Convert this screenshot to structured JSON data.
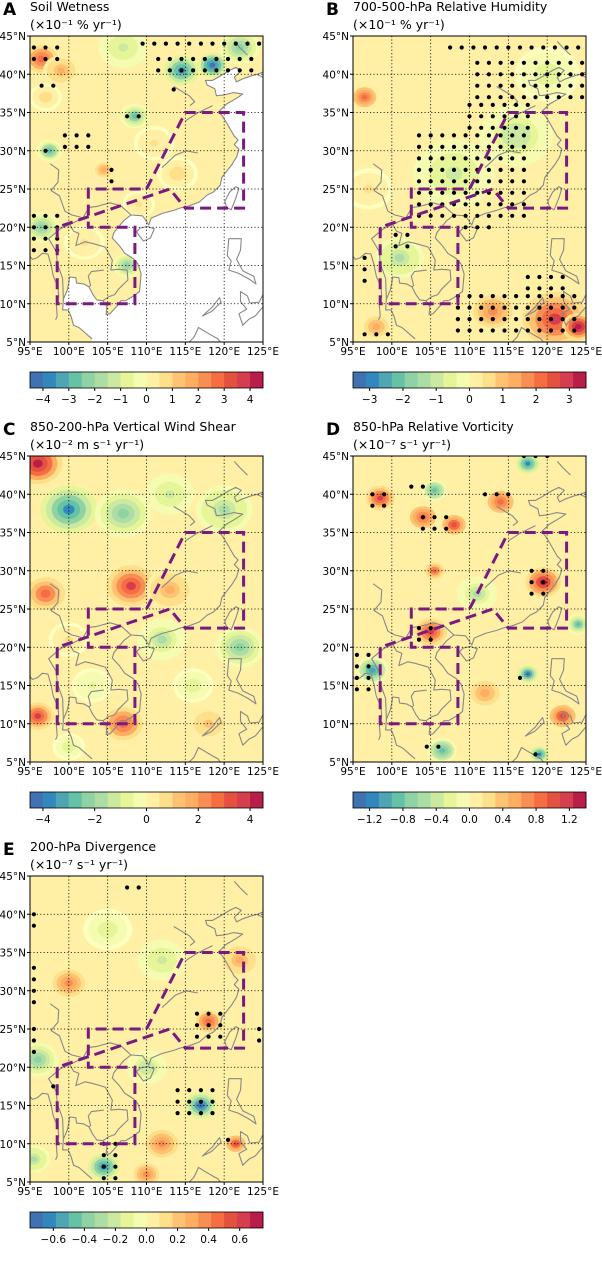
{
  "chart_data": [
    {
      "letter": "A",
      "title": "Soil Wetness",
      "units": "(×10⁻¹ % yr⁻¹)",
      "type": "heatmap",
      "lon_range": [
        95,
        125
      ],
      "lat_range": [
        5,
        45
      ],
      "lon_ticks": [
        "95°E",
        "100°E",
        "105°E",
        "110°E",
        "115°E",
        "120°E",
        "125°E"
      ],
      "lat_ticks": [
        "5°N",
        "10°N",
        "15°N",
        "20°N",
        "25°N",
        "30°N",
        "35°N",
        "40°N",
        "45°N"
      ],
      "colorbar_range": [
        -4.5,
        4.5
      ],
      "colorbar_ticks": [
        "−4",
        "−3",
        "−2",
        "−1",
        "0",
        "1",
        "2",
        "3",
        "4"
      ],
      "colorbar_tick_values": [
        -4,
        -3,
        -2,
        -1,
        0,
        1,
        2,
        3,
        4
      ],
      "masked_ocean": true,
      "blobs": [
        {
          "lon": 96.5,
          "lat": 42,
          "v": 2.8,
          "r": 2.5
        },
        {
          "lon": 99,
          "lat": 40.5,
          "v": 1.8,
          "r": 2.2
        },
        {
          "lon": 97,
          "lat": 37,
          "v": 0.9,
          "r": 2
        },
        {
          "lon": 114.5,
          "lat": 40.5,
          "v": -3.4,
          "r": 2.2
        },
        {
          "lon": 118.5,
          "lat": 41.2,
          "v": -4.2,
          "r": 1.8
        },
        {
          "lon": 122,
          "lat": 43.5,
          "v": -2.2,
          "r": 2.5
        },
        {
          "lon": 107,
          "lat": 43.5,
          "v": -1.3,
          "r": 3
        },
        {
          "lon": 108.5,
          "lat": 34.5,
          "v": -2.6,
          "r": 1.8
        },
        {
          "lon": 97.5,
          "lat": 30,
          "v": -2.8,
          "r": 1.6
        },
        {
          "lon": 104.5,
          "lat": 27.5,
          "v": 1.6,
          "r": 1.8
        },
        {
          "lon": 111,
          "lat": 31,
          "v": 0.8,
          "r": 2.5
        },
        {
          "lon": 96.5,
          "lat": 20,
          "v": -2.4,
          "r": 2.2
        },
        {
          "lon": 107.5,
          "lat": 15,
          "v": -2.1,
          "r": 1.8
        },
        {
          "lon": 102,
          "lat": 18,
          "v": 0.7,
          "r": 2.5
        },
        {
          "lon": 114,
          "lat": 27,
          "v": 1.1,
          "r": 2.5
        },
        {
          "lon": 109,
          "lat": 23,
          "v": 0.8,
          "r": 2
        }
      ],
      "stipple": [
        [
          95.5,
          43.5,
          98.5,
          41.5
        ],
        [
          96.5,
          38.5,
          98.5,
          38.5
        ],
        [
          109.5,
          44,
          124.5,
          44
        ],
        [
          111.5,
          42,
          124.5,
          40
        ],
        [
          113.5,
          38,
          114.5,
          38
        ],
        [
          107.5,
          34.5,
          109.5,
          34.5
        ],
        [
          99.5,
          32,
          103.5,
          30.5
        ],
        [
          97,
          30,
          98,
          30
        ],
        [
          105.5,
          27.5,
          106.5,
          25.5
        ],
        [
          95.5,
          21.5,
          98.5,
          16.5
        ]
      ],
      "box": true
    },
    {
      "letter": "B",
      "title": "700-500-hPa Relative Humidity",
      "units": "(×10⁻¹ % yr⁻¹)",
      "type": "heatmap",
      "lon_range": [
        95,
        125
      ],
      "lat_range": [
        5,
        45
      ],
      "lon_ticks": [
        "95°E",
        "100°E",
        "105°E",
        "110°E",
        "115°E",
        "120°E",
        "125°E"
      ],
      "lat_ticks": [
        "5°N",
        "10°N",
        "15°N",
        "20°N",
        "25°N",
        "30°N",
        "35°N",
        "40°N",
        "45°N"
      ],
      "colorbar_range": [
        -3.5,
        3.5
      ],
      "colorbar_ticks": [
        "−3",
        "−2",
        "−1",
        "0",
        "1",
        "2",
        "3"
      ],
      "colorbar_tick_values": [
        -3,
        -2,
        -1,
        0,
        1,
        2,
        3
      ],
      "masked_ocean": false,
      "blobs": [
        {
          "lon": 96.5,
          "lat": 37,
          "v": 2.2,
          "r": 1.8
        },
        {
          "lon": 108,
          "lat": 27,
          "v": -0.9,
          "r": 5
        },
        {
          "lon": 116,
          "lat": 32,
          "v": -1.2,
          "r": 4.5
        },
        {
          "lon": 120,
          "lat": 40,
          "v": -0.8,
          "r": 4
        },
        {
          "lon": 101,
          "lat": 16,
          "v": -1.4,
          "r": 3
        },
        {
          "lon": 121,
          "lat": 8,
          "v": 2.8,
          "r": 4
        },
        {
          "lon": 124,
          "lat": 7,
          "v": 3.3,
          "r": 2
        },
        {
          "lon": 113,
          "lat": 9,
          "v": 1.6,
          "r": 3
        },
        {
          "lon": 98,
          "lat": 7,
          "v": 1.3,
          "r": 2.5
        },
        {
          "lon": 97,
          "lat": 25,
          "v": 0.6,
          "r": 3
        }
      ],
      "stipple": [
        [
          107.5,
          43.5,
          124.5,
          43.5
        ],
        [
          111,
          41.5,
          124.5,
          37
        ],
        [
          110,
          36,
          117.5,
          33
        ],
        [
          103.5,
          32,
          117.5,
          21
        ],
        [
          109.5,
          20,
          113,
          19.5
        ],
        [
          100.5,
          19,
          102.5,
          17
        ],
        [
          117.5,
          13.5,
          122.5,
          12
        ],
        [
          108.5,
          11,
          124.5,
          6.5
        ],
        [
          96.5,
          16,
          96.5,
          12
        ],
        [
          96.5,
          6,
          99.5,
          6
        ]
      ],
      "box": true
    },
    {
      "letter": "C",
      "title": "850-200-hPa Vertical Wind Shear",
      "units": "(×10⁻² m s⁻¹ yr⁻¹)",
      "type": "heatmap",
      "lon_range": [
        95,
        125
      ],
      "lat_range": [
        5,
        45
      ],
      "lon_ticks": [
        "95°E",
        "100°E",
        "105°E",
        "110°E",
        "115°E",
        "120°E",
        "125°E"
      ],
      "lat_ticks": [
        "5°N",
        "10°N",
        "15°N",
        "20°N",
        "25°N",
        "30°N",
        "35°N",
        "40°N",
        "45°N"
      ],
      "colorbar_range": [
        -4.5,
        4.5
      ],
      "colorbar_ticks": [
        "−4",
        "−2",
        "0",
        "2",
        "4"
      ],
      "colorbar_tick_values": [
        -4,
        -2,
        0,
        2,
        4
      ],
      "masked_ocean": false,
      "blobs": [
        {
          "lon": 96,
          "lat": 44,
          "v": 4.2,
          "r": 3
        },
        {
          "lon": 100,
          "lat": 38,
          "v": -3.6,
          "r": 3.5
        },
        {
          "lon": 107,
          "lat": 37.5,
          "v": -2.2,
          "r": 3.5
        },
        {
          "lon": 113,
          "lat": 40,
          "v": -1.4,
          "r": 3
        },
        {
          "lon": 120,
          "lat": 38,
          "v": -1.8,
          "r": 3.5
        },
        {
          "lon": 97,
          "lat": 27,
          "v": 2.6,
          "r": 3
        },
        {
          "lon": 108,
          "lat": 28,
          "v": 3.4,
          "r": 3
        },
        {
          "lon": 113,
          "lat": 27.5,
          "v": 1.8,
          "r": 3
        },
        {
          "lon": 112,
          "lat": 21,
          "v": -1.6,
          "r": 3
        },
        {
          "lon": 122,
          "lat": 20,
          "v": -2.3,
          "r": 3
        },
        {
          "lon": 100,
          "lat": 21,
          "v": 0.8,
          "r": 2.5
        },
        {
          "lon": 96,
          "lat": 11,
          "v": 3.5,
          "r": 2
        },
        {
          "lon": 107,
          "lat": 10,
          "v": 2.8,
          "r": 3
        },
        {
          "lon": 118,
          "lat": 10,
          "v": 1.4,
          "r": 3
        },
        {
          "lon": 116,
          "lat": 15,
          "v": -0.9,
          "r": 2.5
        },
        {
          "lon": 103,
          "lat": 15,
          "v": -0.8,
          "r": 2.5
        },
        {
          "lon": 100,
          "lat": 7,
          "v": -0.9,
          "r": 2
        }
      ],
      "stipple": [],
      "box": true
    },
    {
      "letter": "D",
      "title": "850-hPa Relative Vorticity",
      "units": "(×10⁻⁷ s⁻¹ yr⁻¹)",
      "type": "heatmap",
      "lon_range": [
        95,
        125
      ],
      "lat_range": [
        5,
        45
      ],
      "lon_ticks": [
        "95°E",
        "100°E",
        "105°E",
        "110°E",
        "115°E",
        "120°E",
        "125°E"
      ],
      "lat_ticks": [
        "5°N",
        "10°N",
        "15°N",
        "20°N",
        "25°N",
        "30°N",
        "35°N",
        "40°N",
        "45°N"
      ],
      "colorbar_range": [
        -1.4,
        1.4
      ],
      "colorbar_ticks": [
        "−1.2",
        "−0.8",
        "−0.4",
        "0.0",
        "0.4",
        "0.8",
        "1.2"
      ],
      "colorbar_tick_values": [
        -1.2,
        -0.8,
        -0.4,
        0.0,
        0.4,
        0.8,
        1.2
      ],
      "masked_ocean": false,
      "blobs": [
        {
          "lon": 98.5,
          "lat": 39.5,
          "v": 1.1,
          "r": 1.8
        },
        {
          "lon": 104,
          "lat": 37,
          "v": 0.9,
          "r": 2
        },
        {
          "lon": 108,
          "lat": 36,
          "v": 1.0,
          "r": 1.8
        },
        {
          "lon": 114,
          "lat": 39,
          "v": 0.9,
          "r": 2
        },
        {
          "lon": 105.5,
          "lat": 40.5,
          "v": -0.9,
          "r": 1.5
        },
        {
          "lon": 117.5,
          "lat": 44,
          "v": -1.1,
          "r": 1.5
        },
        {
          "lon": 119.5,
          "lat": 28.5,
          "v": 1.25,
          "r": 2.2
        },
        {
          "lon": 105,
          "lat": 22,
          "v": 1.1,
          "r": 2
        },
        {
          "lon": 105.5,
          "lat": 30,
          "v": 0.8,
          "r": 1.5
        },
        {
          "lon": 122,
          "lat": 11,
          "v": 1.0,
          "r": 2
        },
        {
          "lon": 97.5,
          "lat": 17,
          "v": -1.0,
          "r": 2
        },
        {
          "lon": 117.5,
          "lat": 16.5,
          "v": -1.2,
          "r": 1.3
        },
        {
          "lon": 106.5,
          "lat": 6.5,
          "v": -0.9,
          "r": 1.8
        },
        {
          "lon": 119,
          "lat": 6,
          "v": -1.1,
          "r": 1.2
        },
        {
          "lon": 111,
          "lat": 27,
          "v": -0.5,
          "r": 2.5
        },
        {
          "lon": 124,
          "lat": 23,
          "v": -0.8,
          "r": 1.5
        },
        {
          "lon": 112,
          "lat": 14,
          "v": 0.5,
          "r": 3
        }
      ],
      "stipple": [
        [
          97.5,
          40,
          99,
          38.5
        ],
        [
          102.5,
          41,
          104,
          40
        ],
        [
          104,
          37,
          108,
          34.5
        ],
        [
          112,
          40,
          115,
          39
        ],
        [
          117,
          45,
          120,
          44
        ],
        [
          118,
          30,
          120.5,
          27
        ],
        [
          103.5,
          22.5,
          106,
          21
        ],
        [
          95.5,
          19,
          98,
          13.5
        ],
        [
          116.5,
          16,
          117.5,
          16
        ],
        [
          104.5,
          7,
          107,
          6
        ],
        [
          118.5,
          6,
          119.5,
          6
        ]
      ],
      "box": true
    },
    {
      "letter": "E",
      "title": "200-hPa Divergence",
      "units": "(×10⁻⁷ s⁻¹ yr⁻¹)",
      "type": "heatmap",
      "lon_range": [
        95,
        125
      ],
      "lat_range": [
        5,
        45
      ],
      "lon_ticks": [
        "95°E",
        "100°E",
        "105°E",
        "110°E",
        "115°E",
        "120°E",
        "125°E"
      ],
      "lat_ticks": [
        "5°N",
        "10°N",
        "15°N",
        "20°N",
        "25°N",
        "30°N",
        "35°N",
        "40°N",
        "45°N"
      ],
      "colorbar_range": [
        -0.75,
        0.75
      ],
      "colorbar_ticks": [
        "−0.6",
        "−0.4",
        "−0.2",
        "0.0",
        "0.2",
        "0.4",
        "0.6"
      ],
      "colorbar_tick_values": [
        -0.6,
        -0.4,
        -0.2,
        0.0,
        0.2,
        0.4,
        0.6
      ],
      "masked_ocean": false,
      "blobs": [
        {
          "lon": 117,
          "lat": 15,
          "v": -0.65,
          "r": 2
        },
        {
          "lon": 104.5,
          "lat": 7,
          "v": -0.6,
          "r": 2
        },
        {
          "lon": 96,
          "lat": 21,
          "v": -0.35,
          "r": 2.5
        },
        {
          "lon": 95.5,
          "lat": 8,
          "v": -0.3,
          "r": 2
        },
        {
          "lon": 118,
          "lat": 26,
          "v": 0.45,
          "r": 2
        },
        {
          "lon": 121.5,
          "lat": 10,
          "v": 0.55,
          "r": 1.5
        },
        {
          "lon": 112,
          "lat": 10,
          "v": 0.35,
          "r": 2.5
        },
        {
          "lon": 110,
          "lat": 6,
          "v": 0.4,
          "r": 2
        },
        {
          "lon": 100,
          "lat": 31,
          "v": 0.35,
          "r": 2.5
        },
        {
          "lon": 112,
          "lat": 34,
          "v": -0.2,
          "r": 3
        },
        {
          "lon": 122,
          "lat": 34,
          "v": 0.3,
          "r": 2.5
        },
        {
          "lon": 105,
          "lat": 38,
          "v": -0.15,
          "r": 3
        },
        {
          "lon": 110,
          "lat": 20,
          "v": -0.25,
          "r": 2.5
        }
      ],
      "stipple": [
        [
          95.5,
          40,
          96.5,
          38
        ],
        [
          95.5,
          33,
          96.5,
          28
        ],
        [
          95.5,
          25,
          96,
          22
        ],
        [
          98,
          17.5,
          98,
          17.5
        ],
        [
          104.5,
          10,
          107,
          5.5
        ],
        [
          114,
          17,
          119,
          13.5
        ],
        [
          116.5,
          27,
          119.5,
          24
        ],
        [
          120.5,
          10.5,
          121,
          10
        ],
        [
          124.5,
          25,
          124.5,
          23
        ],
        [
          107.5,
          43.5,
          110,
          43.5
        ]
      ],
      "box": true
    }
  ]
}
